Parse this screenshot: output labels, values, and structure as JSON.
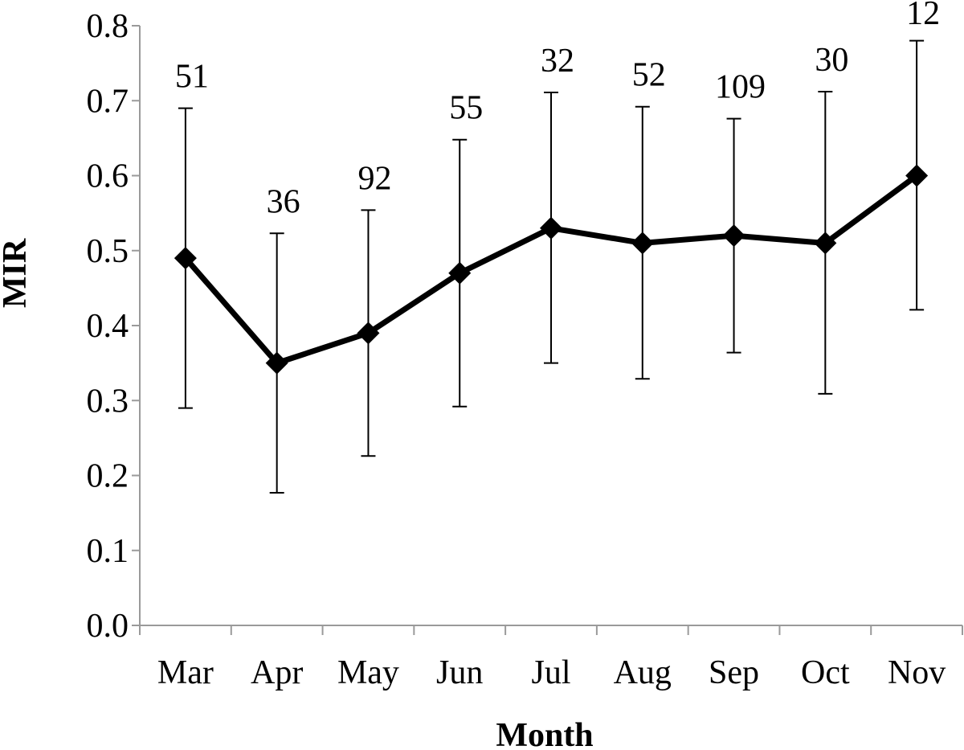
{
  "chart_data": {
    "type": "line",
    "xlabel": "Month",
    "ylabel": "MIR",
    "ylim": [
      0,
      0.8
    ],
    "yticks": [
      "0.0",
      "0.1",
      "0.2",
      "0.3",
      "0.4",
      "0.5",
      "0.6",
      "0.7",
      "0.8"
    ],
    "categories": [
      "Mar",
      "Apr",
      "May",
      "Jun",
      "Jul",
      "Aug",
      "Sep",
      "Oct",
      "Nov"
    ],
    "series": [
      {
        "values": [
          0.49,
          0.35,
          0.39,
          0.47,
          0.53,
          0.51,
          0.52,
          0.51,
          0.6
        ],
        "error_upper": [
          0.69,
          0.523,
          0.554,
          0.648,
          0.711,
          0.692,
          0.676,
          0.712,
          0.78
        ],
        "error_lower": [
          0.29,
          0.177,
          0.226,
          0.292,
          0.35,
          0.329,
          0.364,
          0.309,
          0.421
        ],
        "marker": "diamond",
        "color": "#000000"
      }
    ],
    "data_labels": [
      "51",
      "36",
      "92",
      "55",
      "32",
      "52",
      "109",
      "30",
      "12"
    ],
    "grid": false,
    "legend": "none"
  }
}
